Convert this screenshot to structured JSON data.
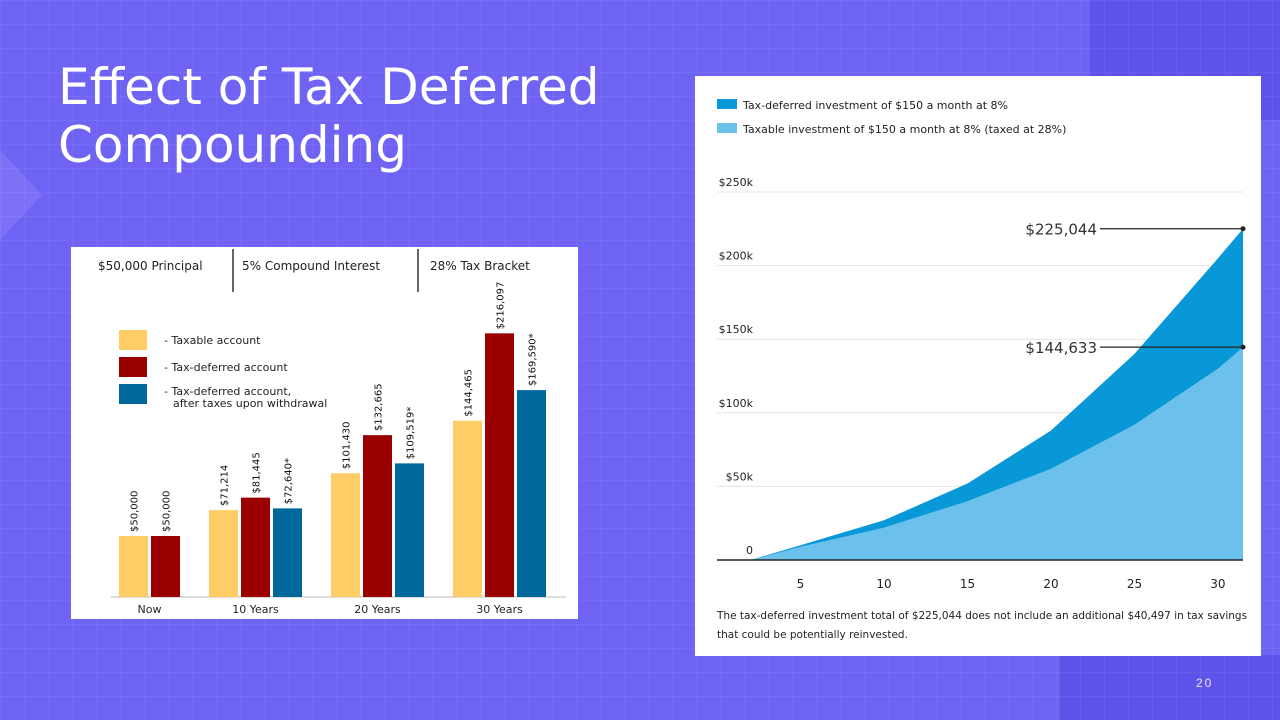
{
  "slide": {
    "title_line1": "Effect of Tax Deferred",
    "title_line2": "Compounding",
    "page_number": "20"
  },
  "colors": {
    "background": "#6f63f4",
    "taxable": "#ffcc66",
    "tax_deferred": "#9b0000",
    "after_tax": "#00689a",
    "line_deferred": "#0898d8",
    "line_taxable": "#6cc0ec"
  },
  "chart_data": [
    {
      "type": "bar",
      "header": [
        "$50,000 Principal",
        "5% Compound Interest",
        "28% Tax Bracket"
      ],
      "categories": [
        "Now",
        "10 Years",
        "20 Years",
        "30 Years"
      ],
      "legend_position": "top-left",
      "ylim": [
        0,
        250000
      ],
      "series": [
        {
          "name": "- Taxable account",
          "values": [
            50000,
            71214,
            101430,
            144465
          ],
          "labels": [
            "$50,000",
            "$71,214",
            "$101,430",
            "$144,465"
          ]
        },
        {
          "name": "- Tax-deferred account",
          "values": [
            50000,
            81445,
            132665,
            216097
          ],
          "labels": [
            "$50,000",
            "$81,445",
            "$132,665",
            "$216,097"
          ]
        },
        {
          "name": "- Tax-deferred account,",
          "name_line2": "after taxes upon withdrawal",
          "values": [
            null,
            72640,
            109519,
            169590
          ],
          "labels": [
            "",
            "$72,640*",
            "$109,519*",
            "$169,590*"
          ]
        }
      ]
    },
    {
      "type": "area",
      "legend_position": "top-left",
      "xlim": [
        0,
        31.5
      ],
      "ylim": [
        0,
        250000
      ],
      "x_ticks": [
        5,
        10,
        15,
        20,
        25,
        30
      ],
      "y_ticks": [
        0,
        50000,
        100000,
        150000,
        200000,
        250000
      ],
      "y_tick_labels": [
        "0",
        "$50k",
        "$100k",
        "$150k",
        "$200k",
        "$250k"
      ],
      "series": [
        {
          "name": "Tax-deferred investment of $150 a month at 8%",
          "x": [
            0,
            2,
            5,
            10,
            15,
            20,
            25,
            30,
            31.5
          ],
          "values": [
            0,
            0,
            10000,
            27000,
            52000,
            88000,
            140000,
            205000,
            225044
          ]
        },
        {
          "name": "Taxable investment of $150 a month at 8% (taxed at 28%)",
          "x": [
            0,
            2,
            5,
            10,
            15,
            20,
            25,
            30,
            31.5
          ],
          "values": [
            0,
            0,
            9000,
            22000,
            40000,
            62000,
            92000,
            130000,
            144633
          ]
        }
      ],
      "annotations": [
        {
          "label": "$225,044",
          "x": 31.5,
          "y": 225044
        },
        {
          "label": "$144,633",
          "x": 31.5,
          "y": 144633
        }
      ],
      "footnote_line1": "The tax-deferred investment total of $225,044 does not include an additional $40,497 in tax savings",
      "footnote_line2": "that could be potentially reinvested."
    }
  ]
}
